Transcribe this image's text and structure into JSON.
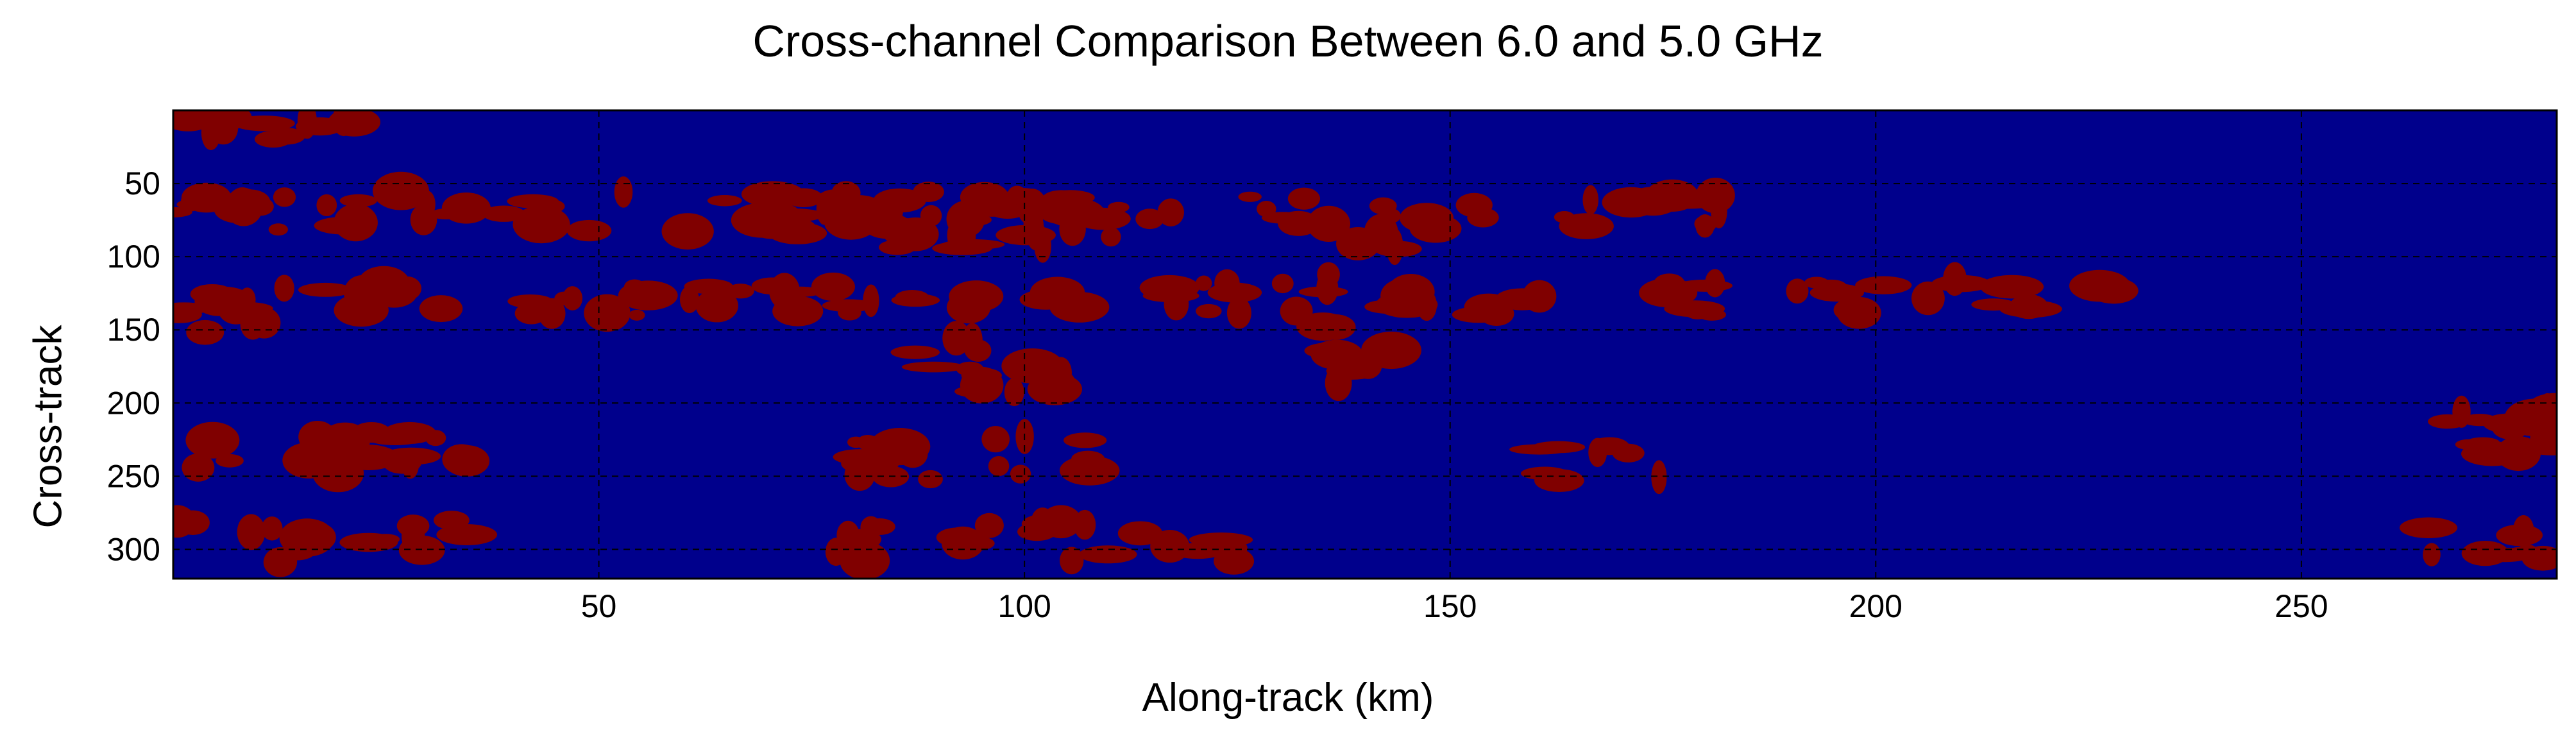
{
  "chart_data": {
    "type": "heatmap",
    "title": "Cross-channel Comparison Between 6.0 and 5.0 GHz",
    "xlabel": "Along-track (km)",
    "ylabel": "Cross-track",
    "xlim": [
      0,
      280
    ],
    "ylim": [
      320,
      0
    ],
    "x_ticks": [
      50,
      100,
      150,
      200,
      250
    ],
    "y_ticks": [
      50,
      100,
      150,
      200,
      250,
      300
    ],
    "grid": true,
    "colors": {
      "background": "#00008C",
      "flag": "#800000"
    },
    "regions": [
      {
        "x": [
          0,
          10
        ],
        "y": [
          0,
          30
        ]
      },
      {
        "x": [
          8,
          30
        ],
        "y": [
          0,
          20
        ]
      },
      {
        "x": [
          0,
          160
        ],
        "y": [
          55,
          85
        ]
      },
      {
        "x": [
          0,
          12
        ],
        "y": [
          115,
          160
        ]
      },
      {
        "x": [
          0,
          185
        ],
        "y": [
          118,
          140
        ]
      },
      {
        "x": [
          75,
          112
        ],
        "y": [
          60,
          95
        ]
      },
      {
        "x": [
          84,
          107
        ],
        "y": [
          155,
          195
        ]
      },
      {
        "x": [
          135,
          145
        ],
        "y": [
          90,
          190
        ]
      },
      {
        "x": [
          160,
          182
        ],
        "y": [
          55,
          85
        ]
      },
      {
        "x": [
          190,
          230
        ],
        "y": [
          115,
          140
        ]
      },
      {
        "x": [
          0,
          35
        ],
        "y": [
          220,
          250
        ]
      },
      {
        "x": [
          80,
          108
        ],
        "y": [
          220,
          255
        ]
      },
      {
        "x": [
          160,
          175
        ],
        "y": [
          225,
          255
        ]
      },
      {
        "x": [
          0,
          35
        ],
        "y": [
          280,
          310
        ]
      },
      {
        "x": [
          75,
          125
        ],
        "y": [
          280,
          310
        ]
      },
      {
        "x": [
          265,
          280
        ],
        "y": [
          200,
          260
        ]
      },
      {
        "x": [
          262,
          280
        ],
        "y": [
          280,
          310
        ]
      }
    ]
  }
}
